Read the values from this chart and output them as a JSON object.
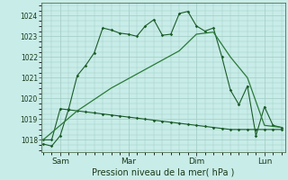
{
  "xlabel": "Pression niveau de la mer( hPa )",
  "bg_color": "#c8ece8",
  "grid_color": "#a0ccc4",
  "line_color_dark": "#1a5c28",
  "line_color_mid": "#2a7a38",
  "xtick_labels": [
    "Sam",
    "Mar",
    "Dim",
    "Lun"
  ],
  "xtick_positions": [
    1,
    5,
    9,
    13
  ],
  "ylim": [
    1017.4,
    1024.6
  ],
  "yticks": [
    1018,
    1019,
    1020,
    1021,
    1022,
    1023,
    1024
  ],
  "xlim": [
    -0.1,
    14.2
  ],
  "series1_x": [
    0.0,
    0.5,
    1.0,
    1.5,
    2.0,
    2.5,
    3.0,
    3.5,
    4.0,
    4.5,
    5.0,
    5.5,
    6.0,
    6.5,
    7.0,
    7.5,
    8.0,
    8.5,
    9.0,
    9.5,
    10.0,
    10.5,
    11.0,
    11.5,
    12.0,
    12.5,
    13.0,
    13.5,
    14.0
  ],
  "series1_y": [
    1017.8,
    1017.7,
    1018.2,
    1019.5,
    1021.1,
    1021.6,
    1022.2,
    1023.4,
    1023.3,
    1023.15,
    1023.1,
    1023.0,
    1023.5,
    1023.8,
    1023.05,
    1023.1,
    1024.1,
    1024.2,
    1023.5,
    1023.25,
    1023.4,
    1022.0,
    1020.4,
    1019.7,
    1020.6,
    1018.2,
    1019.6,
    1018.7,
    1018.6
  ],
  "series2_x": [
    0.0,
    0.5,
    1.0,
    1.5,
    2.0,
    2.5,
    3.0,
    3.5,
    4.0,
    4.5,
    5.0,
    5.5,
    6.0,
    6.5,
    7.0,
    7.5,
    8.0,
    8.5,
    9.0,
    9.5,
    10.0,
    10.5,
    11.0,
    11.5,
    12.0,
    12.5,
    13.0,
    13.5,
    14.0
  ],
  "series2_y": [
    1018.0,
    1018.0,
    1019.5,
    1019.45,
    1019.4,
    1019.35,
    1019.3,
    1019.25,
    1019.2,
    1019.15,
    1019.1,
    1019.05,
    1019.0,
    1018.95,
    1018.9,
    1018.85,
    1018.8,
    1018.75,
    1018.7,
    1018.65,
    1018.6,
    1018.55,
    1018.5,
    1018.5,
    1018.5,
    1018.5,
    1018.5,
    1018.5,
    1018.5
  ],
  "series3_x": [
    0.0,
    2.0,
    4.0,
    6.0,
    8.0,
    9.0,
    10.0,
    11.0,
    12.0,
    13.0,
    14.0
  ],
  "series3_y": [
    1018.0,
    1019.4,
    1020.5,
    1021.4,
    1022.3,
    1023.1,
    1023.2,
    1022.0,
    1021.0,
    1018.7,
    1018.6
  ]
}
